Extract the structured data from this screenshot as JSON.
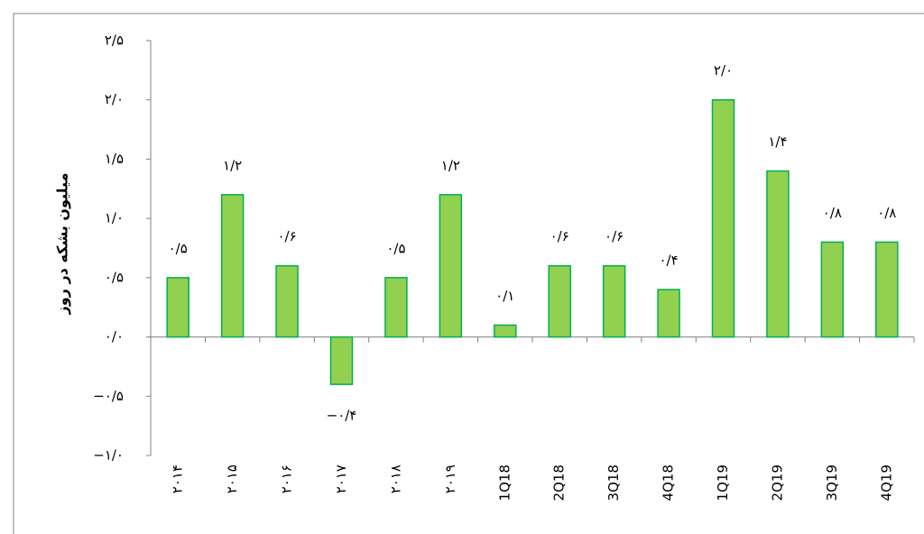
{
  "chart_data": {
    "type": "bar",
    "y_label": "میلیون بشکه در روز",
    "categories": [
      "۲۰۱۴",
      "۲۰۱۵",
      "۲۰۱۶",
      "۲۰۱۷",
      "۲۰۱۸",
      "۲۰۱۹",
      "1Q18",
      "2Q18",
      "3Q18",
      "4Q18",
      "1Q19",
      "2Q19",
      "3Q19",
      "4Q19"
    ],
    "values": [
      0.5,
      1.2,
      0.6,
      -0.4,
      0.5,
      1.2,
      0.1,
      0.6,
      0.6,
      0.4,
      2.0,
      1.4,
      0.8,
      0.8
    ],
    "value_labels": [
      "۰/۵",
      "۱/۲",
      "۰/۶",
      "−۰/۴",
      "۰/۵",
      "۱/۲",
      "۰/۱",
      "۰/۶",
      "۰/۶",
      "۰/۴",
      "۲/۰",
      "۱/۴",
      "۰/۸",
      "۰/۸"
    ],
    "color": "#92d050",
    "edge_color": "#00b050",
    "ylim": [
      -1,
      2.5
    ],
    "yticks": [
      {
        "value": -1,
        "label": "−۱/۰"
      },
      {
        "value": -0.5,
        "label": "−۰/۵"
      },
      {
        "value": 0,
        "label": "۰/۰"
      },
      {
        "value": 0.5,
        "label": "۰/۵"
      },
      {
        "value": 1,
        "label": "۱/۰"
      },
      {
        "value": 1.5,
        "label": "۱/۵"
      },
      {
        "value": 2,
        "label": "۲/۰"
      },
      {
        "value": 2.5,
        "label": "۲/۵"
      }
    ],
    "grid": false
  }
}
